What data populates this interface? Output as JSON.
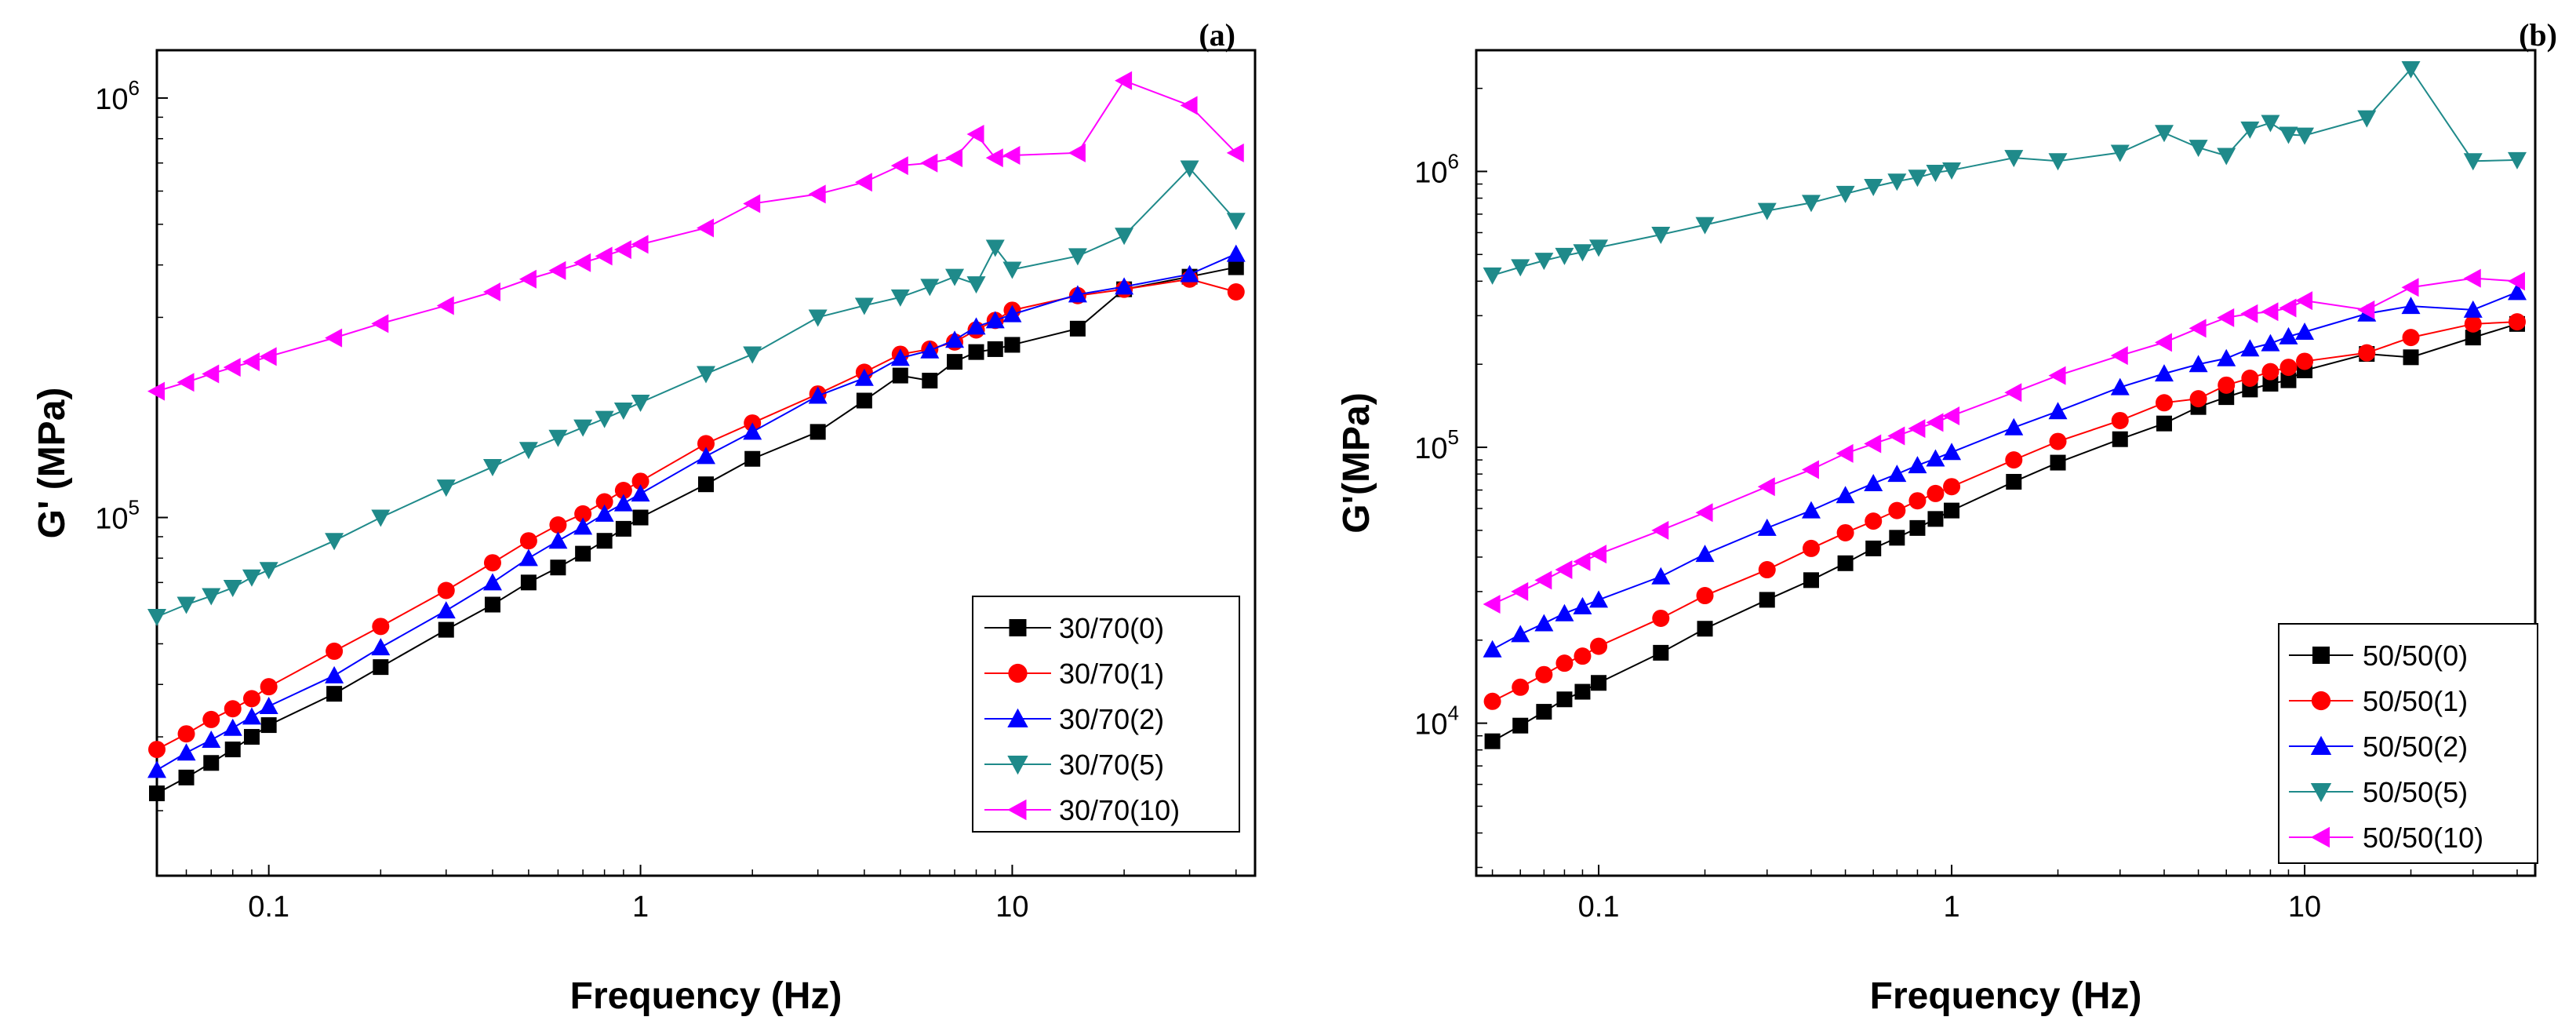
{
  "chart_data": [
    {
      "type": "line",
      "panel_label": "(a)",
      "xlabel": "Frequency (Hz)",
      "ylabel": "G' (MPa)",
      "xscale": "log",
      "yscale": "log",
      "xlim": [
        0.05,
        45
      ],
      "ylim": [
        14000,
        1300000
      ],
      "xticks": [
        {
          "v": 0.1,
          "label": "0.1"
        },
        {
          "v": 1,
          "label": "1"
        },
        {
          "v": 10,
          "label": "10"
        }
      ],
      "yticks": [
        {
          "v": 100000,
          "base": "10",
          "exp": "5"
        },
        {
          "v": 1000000,
          "base": "10",
          "exp": "6"
        }
      ],
      "legend_position": "bottom-right",
      "series": [
        {
          "name": "30/70(0)",
          "color": "#000000",
          "marker": "square",
          "x": [
            0.05,
            0.06,
            0.07,
            0.08,
            0.09,
            0.1,
            0.15,
            0.2,
            0.3,
            0.4,
            0.5,
            0.6,
            0.7,
            0.8,
            0.9,
            1,
            1.5,
            2,
            3,
            4,
            5,
            6,
            7,
            8,
            9,
            10,
            15,
            20,
            30,
            40
          ],
          "y": [
            22000,
            24000,
            26000,
            28000,
            30000,
            32000,
            38000,
            44000,
            54000,
            62000,
            70000,
            76000,
            82000,
            88000,
            94000,
            100000,
            120000,
            138000,
            160000,
            190000,
            218000,
            212000,
            235000,
            248000,
            252000,
            258000,
            282000,
            350000,
            375000,
            395000
          ]
        },
        {
          "name": "30/70(1)",
          "color": "#ff0000",
          "marker": "circle",
          "x": [
            0.05,
            0.06,
            0.07,
            0.08,
            0.09,
            0.1,
            0.15,
            0.2,
            0.3,
            0.4,
            0.5,
            0.6,
            0.7,
            0.8,
            0.9,
            1,
            1.5,
            2,
            3,
            4,
            5,
            6,
            7,
            8,
            9,
            10,
            15,
            20,
            30,
            40
          ],
          "y": [
            28000,
            30500,
            33000,
            35000,
            37000,
            39500,
            48000,
            55000,
            67000,
            78000,
            88000,
            96000,
            102000,
            109000,
            116000,
            122000,
            150000,
            168000,
            197000,
            222000,
            245000,
            252000,
            262000,
            280000,
            295000,
            312000,
            338000,
            350000,
            370000,
            345000
          ]
        },
        {
          "name": "30/70(2)",
          "color": "#0000ff",
          "marker": "triangle-up",
          "x": [
            0.05,
            0.06,
            0.07,
            0.08,
            0.09,
            0.1,
            0.15,
            0.2,
            0.3,
            0.4,
            0.5,
            0.6,
            0.7,
            0.8,
            0.9,
            1,
            1.5,
            2,
            3,
            4,
            5,
            6,
            7,
            8,
            9,
            10,
            15,
            20,
            30,
            40
          ],
          "y": [
            25000,
            27500,
            29500,
            31500,
            33500,
            35500,
            42000,
            49000,
            60000,
            70000,
            80000,
            88000,
            95000,
            102000,
            108000,
            114000,
            140000,
            160000,
            195000,
            215000,
            240000,
            250000,
            265000,
            285000,
            295000,
            305000,
            340000,
            355000,
            380000,
            425000
          ]
        },
        {
          "name": "30/70(5)",
          "color": "#1f8a8a",
          "marker": "triangle-down",
          "x": [
            0.05,
            0.06,
            0.07,
            0.08,
            0.09,
            0.1,
            0.15,
            0.2,
            0.3,
            0.4,
            0.5,
            0.6,
            0.7,
            0.8,
            0.9,
            1,
            1.5,
            2,
            3,
            4,
            5,
            6,
            7,
            8,
            9,
            10,
            15,
            20,
            30,
            40
          ],
          "y": [
            58000,
            62000,
            65000,
            68000,
            72000,
            75000,
            88000,
            100000,
            118000,
            132000,
            145000,
            155000,
            164000,
            172000,
            180000,
            188000,
            220000,
            245000,
            300000,
            320000,
            335000,
            355000,
            375000,
            360000,
            440000,
            390000,
            420000,
            470000,
            680000,
            510000
          ]
        },
        {
          "name": "30/70(10)",
          "color": "#ff00ff",
          "marker": "triangle-left",
          "x": [
            0.05,
            0.06,
            0.07,
            0.08,
            0.09,
            0.1,
            0.15,
            0.2,
            0.3,
            0.4,
            0.5,
            0.6,
            0.7,
            0.8,
            0.9,
            1,
            1.5,
            2,
            3,
            4,
            5,
            6,
            7,
            8,
            9,
            10,
            15,
            20,
            30,
            40
          ],
          "y": [
            200000,
            210000,
            220000,
            228000,
            235000,
            242000,
            268000,
            290000,
            320000,
            345000,
            370000,
            388000,
            405000,
            420000,
            435000,
            448000,
            490000,
            560000,
            590000,
            630000,
            690000,
            700000,
            720000,
            820000,
            720000,
            730000,
            740000,
            1100000,
            960000,
            740000
          ]
        }
      ]
    },
    {
      "type": "line",
      "panel_label": "(b)",
      "xlabel": "Frequency (Hz)",
      "ylabel": "G'(MPa)",
      "xscale": "log",
      "yscale": "log",
      "xlim": [
        0.045,
        45
      ],
      "ylim": [
        2800,
        2750000
      ],
      "xticks": [
        {
          "v": 0.1,
          "label": "0.1"
        },
        {
          "v": 1,
          "label": "1"
        },
        {
          "v": 10,
          "label": "10"
        }
      ],
      "yticks": [
        {
          "v": 10000,
          "base": "10",
          "exp": "4"
        },
        {
          "v": 100000,
          "base": "10",
          "exp": "5"
        },
        {
          "v": 1000000,
          "base": "10",
          "exp": "6"
        }
      ],
      "legend_position": "bottom-right",
      "series": [
        {
          "name": "50/50(0)",
          "color": "#000000",
          "marker": "square",
          "x": [
            0.05,
            0.06,
            0.07,
            0.08,
            0.09,
            0.1,
            0.15,
            0.2,
            0.3,
            0.4,
            0.5,
            0.6,
            0.7,
            0.8,
            0.9,
            1,
            1.5,
            2,
            3,
            4,
            5,
            6,
            7,
            8,
            9,
            10,
            15,
            20,
            30,
            40
          ],
          "y": [
            8600,
            9800,
            11000,
            12200,
            13000,
            14000,
            18000,
            22000,
            28000,
            33000,
            38000,
            43000,
            47000,
            51000,
            55000,
            59000,
            75000,
            88000,
            107000,
            122000,
            140000,
            152000,
            162000,
            170000,
            175000,
            190000,
            218000,
            212000,
            250000,
            280000
          ]
        },
        {
          "name": "50/50(1)",
          "color": "#ff0000",
          "marker": "circle",
          "x": [
            0.05,
            0.06,
            0.07,
            0.08,
            0.09,
            0.1,
            0.15,
            0.2,
            0.3,
            0.4,
            0.5,
            0.6,
            0.7,
            0.8,
            0.9,
            1,
            1.5,
            2,
            3,
            4,
            5,
            6,
            7,
            8,
            9,
            10,
            15,
            20,
            30,
            40
          ],
          "y": [
            12000,
            13500,
            15000,
            16500,
            17500,
            19000,
            24000,
            29000,
            36000,
            43000,
            49000,
            54000,
            59000,
            64000,
            68000,
            72000,
            90000,
            105000,
            125000,
            145000,
            150000,
            168000,
            178000,
            188000,
            195000,
            205000,
            220000,
            250000,
            280000,
            285000
          ]
        },
        {
          "name": "50/50(2)",
          "color": "#0000ff",
          "marker": "triangle-up",
          "x": [
            0.05,
            0.06,
            0.07,
            0.08,
            0.09,
            0.1,
            0.15,
            0.2,
            0.3,
            0.4,
            0.5,
            0.6,
            0.7,
            0.8,
            0.9,
            1,
            1.5,
            2,
            3,
            4,
            5,
            6,
            7,
            8,
            9,
            10,
            15,
            20,
            30,
            40
          ],
          "y": [
            18500,
            21000,
            23000,
            25000,
            26500,
            28000,
            34000,
            41000,
            51000,
            59000,
            67000,
            74000,
            80000,
            86000,
            91000,
            96000,
            118000,
            135000,
            165000,
            185000,
            200000,
            210000,
            228000,
            238000,
            252000,
            262000,
            305000,
            325000,
            315000,
            365000
          ]
        },
        {
          "name": "50/50(5)",
          "color": "#1f8a8a",
          "marker": "triangle-down",
          "x": [
            0.05,
            0.06,
            0.07,
            0.08,
            0.09,
            0.1,
            0.15,
            0.2,
            0.3,
            0.4,
            0.5,
            0.6,
            0.7,
            0.8,
            0.9,
            1,
            1.5,
            2,
            3,
            4,
            5,
            6,
            7,
            8,
            9,
            10,
            15,
            20,
            30,
            40
          ],
          "y": [
            420000,
            450000,
            475000,
            495000,
            510000,
            530000,
            590000,
            640000,
            720000,
            770000,
            830000,
            880000,
            920000,
            950000,
            990000,
            1010000,
            1120000,
            1090000,
            1170000,
            1380000,
            1220000,
            1140000,
            1420000,
            1500000,
            1360000,
            1350000,
            1560000,
            2350000,
            1090000,
            1100000
          ]
        },
        {
          "name": "50/50(10)",
          "color": "#ff00ff",
          "marker": "triangle-left",
          "x": [
            0.05,
            0.06,
            0.07,
            0.08,
            0.09,
            0.1,
            0.15,
            0.2,
            0.3,
            0.4,
            0.5,
            0.6,
            0.7,
            0.8,
            0.9,
            1,
            1.5,
            2,
            3,
            4,
            5,
            6,
            7,
            8,
            9,
            10,
            15,
            20,
            30,
            40
          ],
          "y": [
            27000,
            30000,
            33000,
            36000,
            38500,
            41000,
            50000,
            58000,
            72000,
            83000,
            95000,
            103000,
            110000,
            117000,
            123000,
            130000,
            158000,
            182000,
            215000,
            240000,
            270000,
            295000,
            305000,
            310000,
            320000,
            340000,
            315000,
            380000,
            410000,
            400000
          ]
        }
      ]
    }
  ]
}
